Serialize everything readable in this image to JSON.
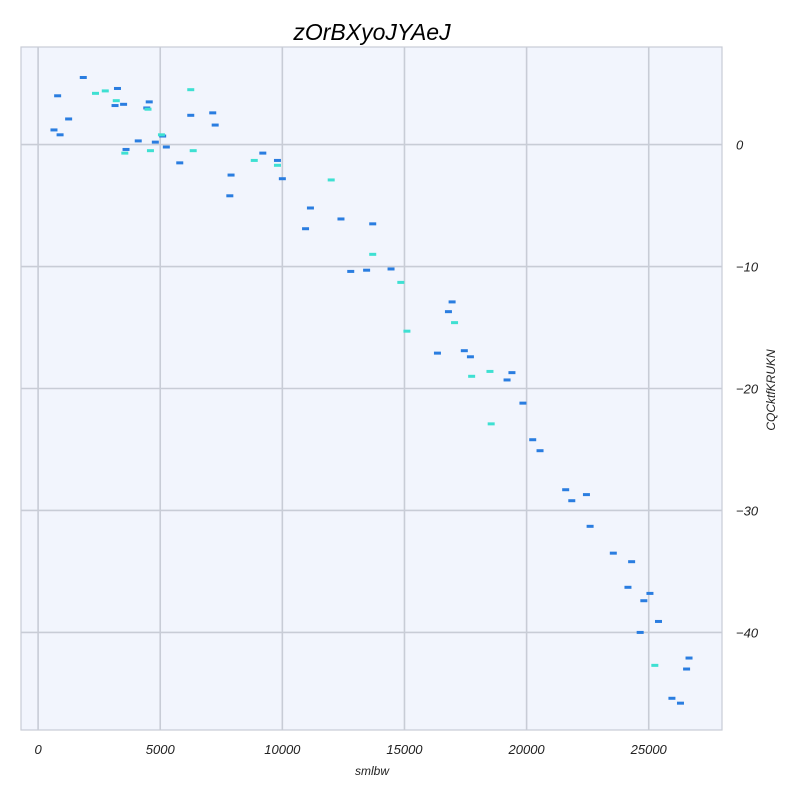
{
  "chart_data": {
    "type": "scatter",
    "title": "zOrBXyoJYAeJ",
    "xlabel": "smlbw",
    "ylabel": "CQCktfKRUKN",
    "xlim": [
      -700,
      28000
    ],
    "ylim": [
      -48,
      8
    ],
    "x_ticks": [
      0,
      5000,
      10000,
      15000,
      20000,
      25000
    ],
    "x_tick_labels": [
      "0",
      "5000",
      "10000",
      "15000",
      "20000",
      "25000"
    ],
    "y_ticks": [
      0,
      -10,
      -20,
      -30,
      -40
    ],
    "y_tick_labels": [
      "0",
      "−10",
      "−20",
      "−30",
      "−40"
    ],
    "y_axis_side": "right",
    "grid": true,
    "background": "#f2f5fd",
    "grid_color": "#c8ccd6",
    "marker": "dash",
    "series": [
      {
        "color": "#2a7de0",
        "points": [
          [
            650,
            1.2
          ],
          [
            800,
            4.0
          ],
          [
            900,
            0.8
          ],
          [
            1250,
            2.1
          ],
          [
            1850,
            5.5
          ],
          [
            3150,
            3.2
          ],
          [
            3250,
            4.6
          ],
          [
            3500,
            3.3
          ],
          [
            3600,
            -0.4
          ],
          [
            4100,
            0.3
          ],
          [
            4450,
            3.0
          ],
          [
            4550,
            3.5
          ],
          [
            4800,
            0.2
          ],
          [
            5100,
            0.7
          ],
          [
            5250,
            -0.2
          ],
          [
            5800,
            -1.5
          ],
          [
            6250,
            2.4
          ],
          [
            7150,
            2.6
          ],
          [
            7250,
            1.6
          ],
          [
            7850,
            -4.2
          ],
          [
            7900,
            -2.5
          ],
          [
            9200,
            -0.7
          ],
          [
            9800,
            -1.3
          ],
          [
            10000,
            -2.8
          ],
          [
            10950,
            -6.9
          ],
          [
            11150,
            -5.2
          ],
          [
            12400,
            -6.1
          ],
          [
            12800,
            -10.4
          ],
          [
            13450,
            -10.3
          ],
          [
            13700,
            -6.5
          ],
          [
            14450,
            -10.2
          ],
          [
            16350,
            -17.1
          ],
          [
            16800,
            -13.7
          ],
          [
            16950,
            -12.9
          ],
          [
            17450,
            -16.9
          ],
          [
            17700,
            -17.4
          ],
          [
            19200,
            -19.3
          ],
          [
            19400,
            -18.7
          ],
          [
            19850,
            -21.2
          ],
          [
            20250,
            -24.2
          ],
          [
            20550,
            -25.1
          ],
          [
            21600,
            -28.3
          ],
          [
            21850,
            -29.2
          ],
          [
            22450,
            -28.7
          ],
          [
            22600,
            -31.3
          ],
          [
            23550,
            -33.5
          ],
          [
            24150,
            -36.3
          ],
          [
            24300,
            -34.2
          ],
          [
            24650,
            -40.0
          ],
          [
            24800,
            -37.4
          ],
          [
            25050,
            -36.8
          ],
          [
            25400,
            -39.1
          ],
          [
            25950,
            -45.4
          ],
          [
            26300,
            -45.8
          ],
          [
            26550,
            -43.0
          ],
          [
            26650,
            -42.1
          ]
        ]
      },
      {
        "color": "#3ee0d2",
        "points": [
          [
            2350,
            4.2
          ],
          [
            2750,
            4.4
          ],
          [
            3200,
            3.6
          ],
          [
            3550,
            -0.7
          ],
          [
            4500,
            2.9
          ],
          [
            4600,
            -0.5
          ],
          [
            5050,
            0.8
          ],
          [
            6250,
            4.5
          ],
          [
            6350,
            -0.5
          ],
          [
            8850,
            -1.3
          ],
          [
            9800,
            -1.7
          ],
          [
            12000,
            -2.9
          ],
          [
            13700,
            -9.0
          ],
          [
            14850,
            -11.3
          ],
          [
            15100,
            -15.3
          ],
          [
            17050,
            -14.6
          ],
          [
            17750,
            -19.0
          ],
          [
            18500,
            -18.6
          ],
          [
            18550,
            -22.9
          ],
          [
            25250,
            -42.7
          ]
        ]
      }
    ]
  }
}
